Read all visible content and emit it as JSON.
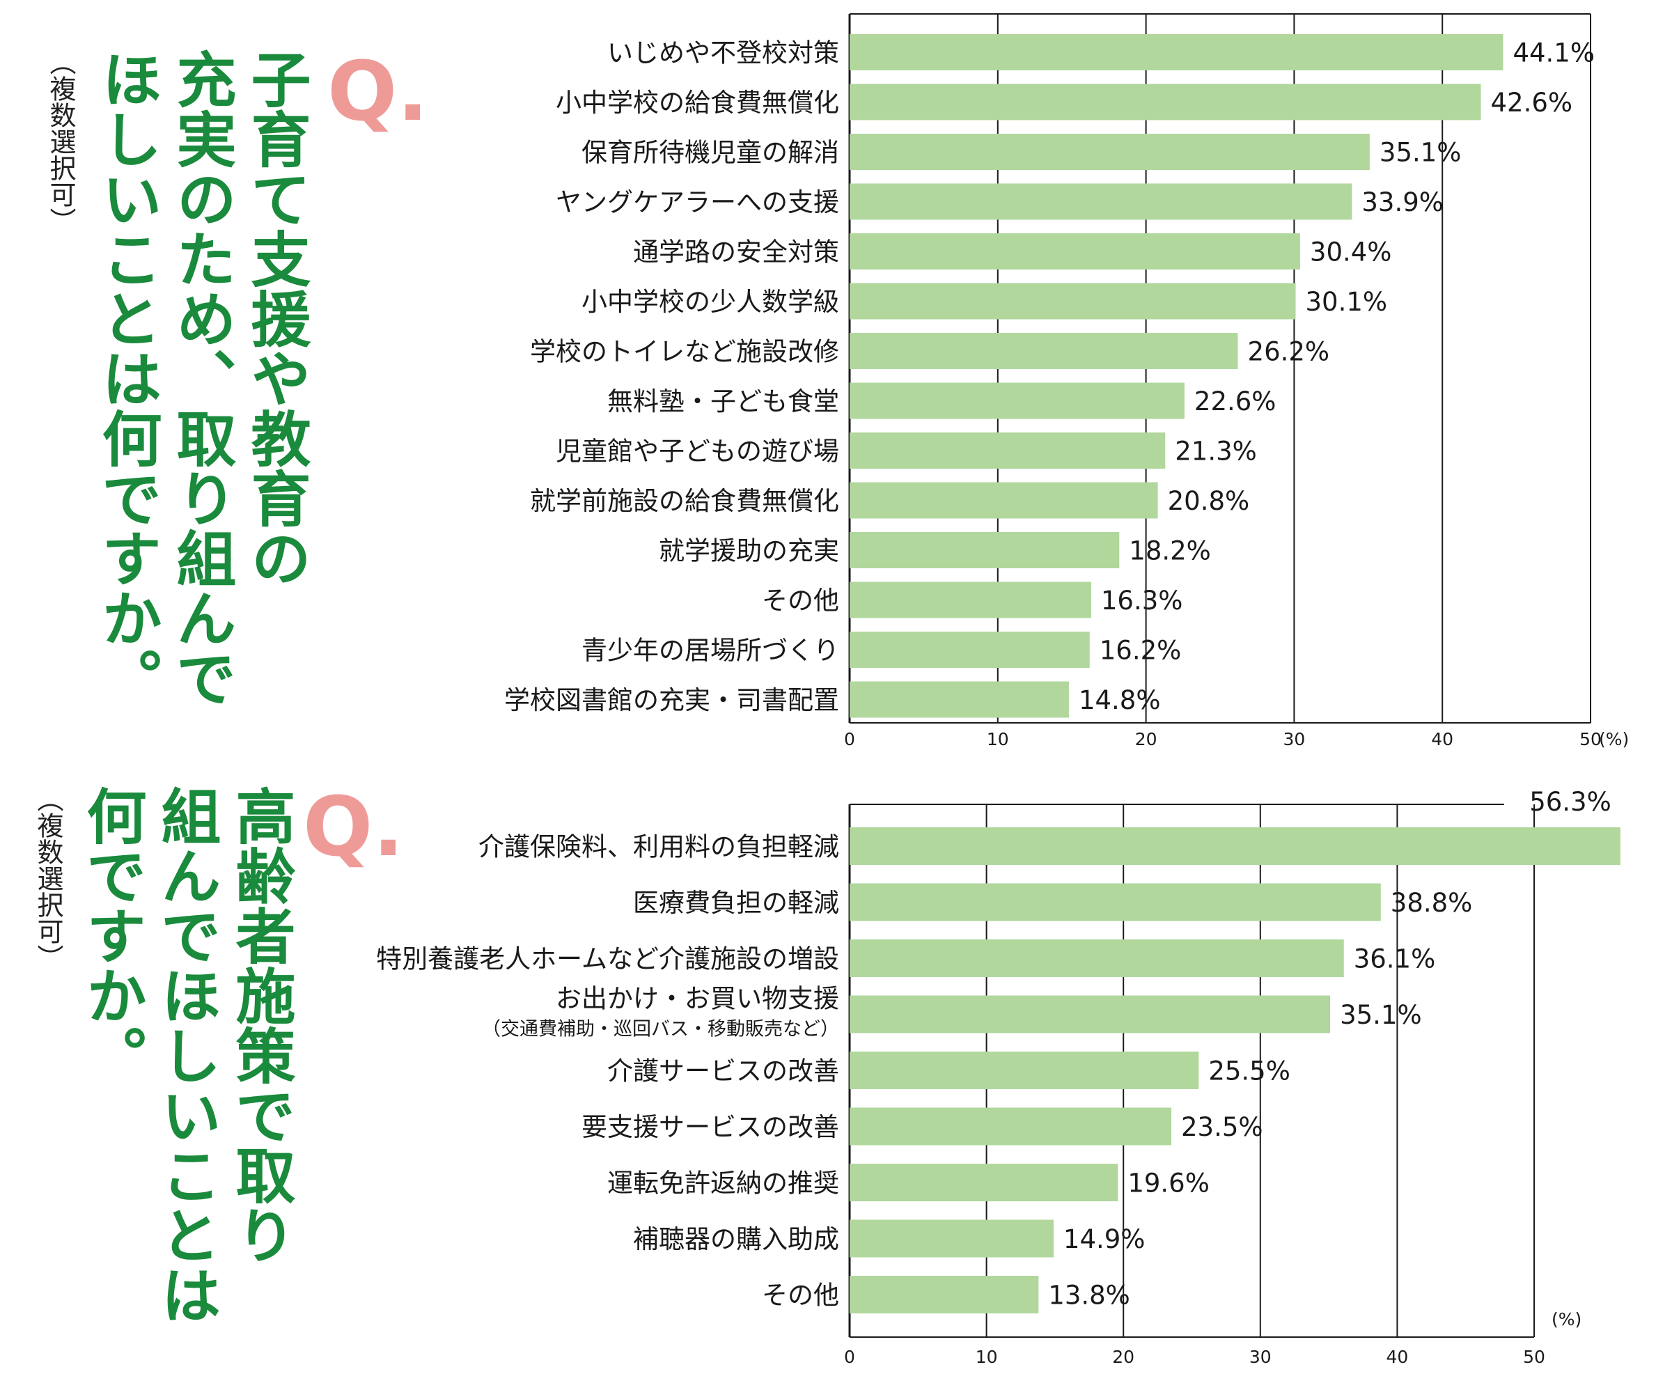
{
  "colors": {
    "bar": "#b1d79d",
    "title": "#1a8a3c",
    "q_mark": "#ee9b98",
    "axis": "#1a1a1a"
  },
  "panel1": {
    "q_mark": "Q.",
    "question_lines": [
      "子育て支援や教育の",
      "充実のため、取り組んで",
      "ほしいことは何ですか。"
    ],
    "note": "（複数選択可）"
  },
  "panel2": {
    "q_mark": "Q.",
    "question_lines": [
      "高齢者施策で取り",
      "組んでほしいことは",
      "何ですか。"
    ],
    "note": "（複数選択可）"
  },
  "chart_data": [
    {
      "type": "bar",
      "orientation": "horizontal",
      "categories": [
        "いじめや不登校対策",
        "小中学校の給食費無償化",
        "保育所待機児童の解消",
        "ヤングケアラーへの支援",
        "通学路の安全対策",
        "小中学校の少人数学級",
        "学校のトイレなど施設改修",
        "無料塾・子ども食堂",
        "児童館や子どもの遊び場",
        "就学前施設の給食費無償化",
        "就学援助の充実",
        "その他",
        "青少年の居場所づくり",
        "学校図書館の充実・司書配置"
      ],
      "values": [
        44.1,
        42.6,
        35.1,
        33.9,
        30.4,
        30.1,
        26.2,
        22.6,
        21.3,
        20.8,
        18.2,
        16.3,
        16.2,
        14.8
      ],
      "value_labels": [
        "44.1%",
        "42.6%",
        "35.1%",
        "33.9%",
        "30.4%",
        "30.1%",
        "26.2%",
        "22.6%",
        "21.3%",
        "20.8%",
        "18.2%",
        "16.3%",
        "16.2%",
        "14.8%"
      ],
      "xlim": [
        0,
        50
      ],
      "xticks": [
        "0",
        "10",
        "20",
        "30",
        "40",
        "50"
      ],
      "unit_label": "(%)",
      "grid": true
    },
    {
      "type": "bar",
      "orientation": "horizontal",
      "categories": [
        "介護保険料、利用料の負担軽減",
        "医療費負担の軽減",
        "特別養護老人ホームなど介護施設の増設",
        "お出かけ・お買い物支援",
        "介護サービスの改善",
        "要支援サービスの改善",
        "運転免許返納の推奨",
        "補聴器の購入助成",
        "その他"
      ],
      "category_sublabels": [
        "",
        "",
        "",
        "（交通費補助・巡回バス・移動販売など）",
        "",
        "",
        "",
        "",
        ""
      ],
      "values": [
        56.3,
        38.8,
        36.1,
        35.1,
        25.5,
        23.5,
        19.6,
        14.9,
        13.8
      ],
      "value_labels": [
        "56.3%",
        "38.8%",
        "36.1%",
        "35.1%",
        "25.5%",
        "23.5%",
        "19.6%",
        "14.9%",
        "13.8%"
      ],
      "xlim": [
        0,
        50
      ],
      "xticks": [
        "0",
        "10",
        "20",
        "30",
        "40",
        "50"
      ],
      "unit_label": "(%)",
      "grid": true
    }
  ]
}
